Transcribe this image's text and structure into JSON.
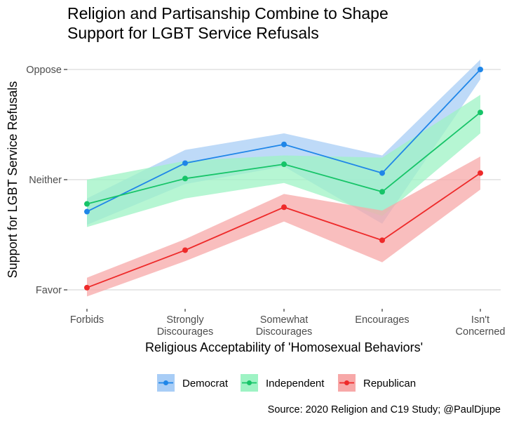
{
  "chart_data": {
    "type": "line",
    "title": "Religion and Partisanship Combine to Shape Support for LGBT Service Refusals",
    "title_lines": [
      "Religion and Partisanship Combine to Shape",
      "Support for LGBT Service Refusals"
    ],
    "xlabel": "Religious Acceptability of 'Homosexual Behaviors'",
    "ylabel": "Support for LGBT Service Refusals",
    "caption": "Source: 2020 Religion and C19 Study; @PaulDjupe",
    "categories": [
      "Forbids",
      "Strongly Discourages",
      "Somewhat Discourages",
      "Encourages",
      "Isn't Concerned"
    ],
    "category_label_lines": [
      [
        "Forbids"
      ],
      [
        "Strongly",
        "Discourages"
      ],
      [
        "Somewhat",
        "Discourages"
      ],
      [
        "Encourages"
      ],
      [
        "Isn't",
        "Concerned"
      ]
    ],
    "y_ticks": [
      {
        "value": 1,
        "label": "Favor"
      },
      {
        "value": 2,
        "label": "Neither"
      },
      {
        "value": 3,
        "label": "Oppose"
      }
    ],
    "ylim": [
      0.93,
      3.1
    ],
    "grid": true,
    "legend_position": "bottom",
    "series": [
      {
        "name": "Democrat",
        "color": "#1f86e8",
        "fill": "#a8cdf6",
        "values": [
          1.71,
          2.15,
          2.32,
          2.06,
          3.0
        ],
        "lower": [
          1.59,
          1.96,
          2.12,
          1.6,
          2.91
        ],
        "upper": [
          1.83,
          2.27,
          2.42,
          2.22,
          3.09
        ]
      },
      {
        "name": "Independent",
        "color": "#16c468",
        "fill": "#9ef3c4",
        "values": [
          1.78,
          2.01,
          2.14,
          1.89,
          2.61
        ],
        "lower": [
          1.57,
          1.83,
          1.97,
          1.67,
          2.42
        ],
        "upper": [
          2.0,
          2.17,
          2.22,
          2.2,
          2.77
        ]
      },
      {
        "name": "Republican",
        "color": "#ee2a2a",
        "fill": "#f7a8a8",
        "values": [
          1.02,
          1.36,
          1.75,
          1.45,
          2.06
        ],
        "lower": [
          0.94,
          1.26,
          1.62,
          1.25,
          1.91
        ],
        "upper": [
          1.11,
          1.46,
          1.87,
          1.72,
          2.21
        ]
      }
    ]
  }
}
